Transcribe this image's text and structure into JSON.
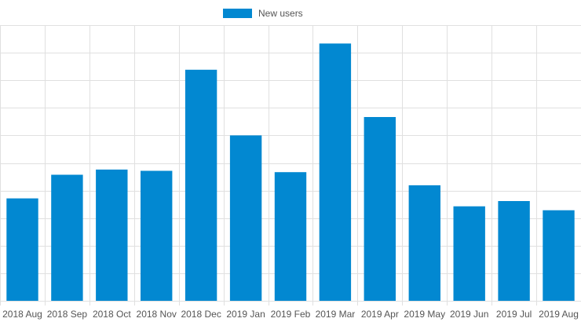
{
  "chart_data": {
    "type": "bar",
    "categories": [
      "2018 Aug",
      "2018 Sep",
      "2018 Oct",
      "2018 Nov",
      "2018 Dec",
      "2019 Jan",
      "2019 Feb",
      "2019 Mar",
      "2019 Apr",
      "2019 May",
      "2019 Jun",
      "2019 Jul",
      "2019 Aug"
    ],
    "series": [
      {
        "name": "New users",
        "color": "#0288d1",
        "values": [
          3.9,
          4.8,
          5.0,
          4.95,
          8.8,
          6.3,
          4.9,
          9.8,
          7.0,
          4.4,
          3.6,
          3.8,
          3.45
        ]
      }
    ],
    "ylim": [
      0,
      10.5
    ],
    "grid": true,
    "legend": "top-center",
    "y_ticks_shown": false
  }
}
